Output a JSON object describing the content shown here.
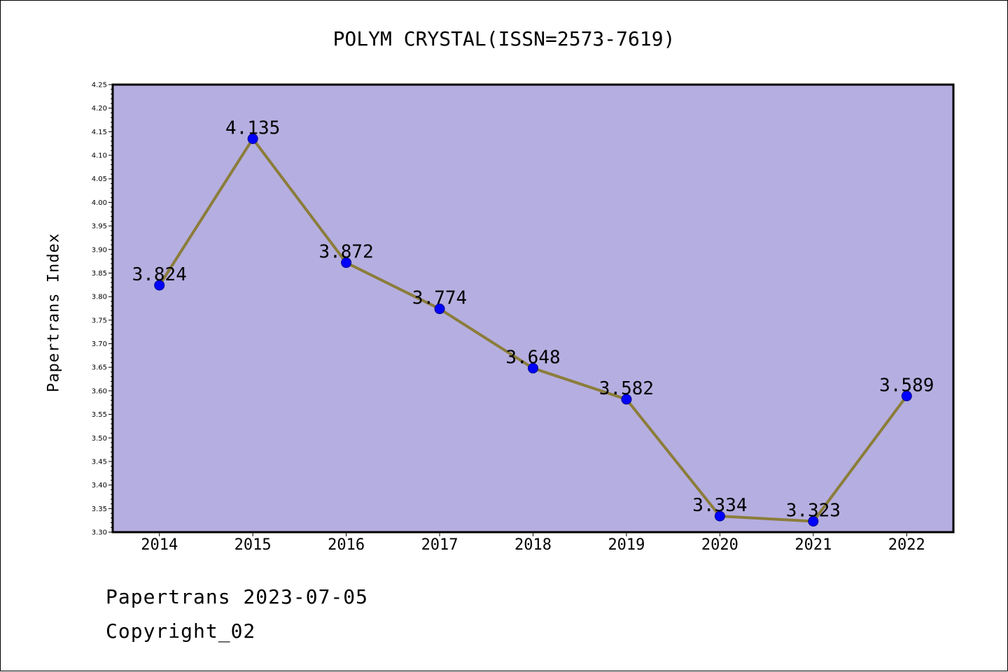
{
  "chart_data": {
    "type": "line",
    "title": "POLYM CRYSTAL(ISSN=2573-7619)",
    "xlabel": "",
    "ylabel": "Papertrans Index",
    "categories": [
      "2014",
      "2015",
      "2016",
      "2017",
      "2018",
      "2019",
      "2020",
      "2021",
      "2022"
    ],
    "series": [
      {
        "values": [
          3.824,
          4.135,
          3.872,
          3.774,
          3.648,
          3.582,
          3.334,
          3.323,
          3.589
        ],
        "data_labels": [
          "3.824",
          "4.135",
          "3.872",
          "3.774",
          "3.648",
          "3.582",
          "3.334",
          "3.323",
          "3.589"
        ],
        "line_color": "#8b7d3a",
        "marker_color": "#0000ff"
      }
    ],
    "ylim": [
      3.3,
      4.25
    ],
    "ytick_step": 0.05,
    "ytick_labels": [
      "3.30",
      "3.35",
      "3.40",
      "3.45",
      "3.50",
      "3.55",
      "3.60",
      "3.65",
      "3.70",
      "3.75",
      "3.80",
      "3.85",
      "3.90",
      "3.95",
      "4.00",
      "4.05",
      "4.10",
      "4.15",
      "4.20",
      "4.25"
    ],
    "grid": false,
    "legend": "none",
    "plot_background": "#b5aee0"
  },
  "footer": {
    "line1": "Papertrans 2023-07-05",
    "line2": "Copyright_02"
  }
}
